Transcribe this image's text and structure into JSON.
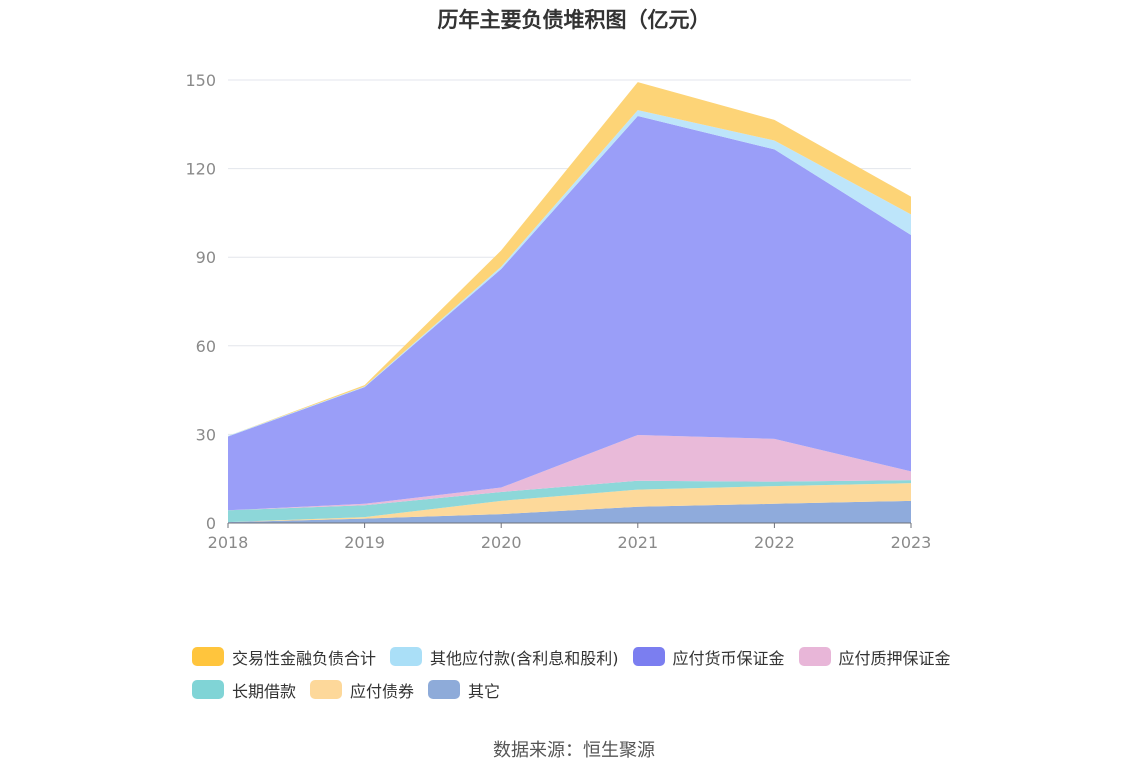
{
  "chart_data": {
    "type": "area",
    "stacked": true,
    "title": "历年主要负债堆积图（亿元）",
    "categories": [
      "2018",
      "2019",
      "2020",
      "2021",
      "2022",
      "2023"
    ],
    "ylim": [
      0,
      150
    ],
    "yticks": [
      0,
      30,
      60,
      90,
      120,
      150
    ],
    "grid": true,
    "legend_position": "bottom",
    "series": [
      {
        "name": "其它",
        "color": "#8fabdc",
        "values": [
          0.3,
          1.5,
          3.0,
          5.5,
          6.5,
          7.5
        ]
      },
      {
        "name": "应付债券",
        "color": "#fdd99a",
        "values": [
          0,
          0.5,
          4.5,
          5.8,
          6.0,
          6.0
        ]
      },
      {
        "name": "长期借款",
        "color": "#8dd7d9",
        "values": [
          4.0,
          4.0,
          3.0,
          3.0,
          1.5,
          1.0
        ]
      },
      {
        "name": "应付质押保证金",
        "color": "#e9bad9",
        "values": [
          0,
          0.5,
          1.5,
          15.5,
          14.5,
          3.0
        ]
      },
      {
        "name": "应付货币保证金",
        "color": "#9a9ef8",
        "values": [
          25.0,
          39.5,
          74.0,
          108.0,
          98.0,
          80.0
        ]
      },
      {
        "name": "其他应付款(含利息和股利)",
        "color": "#bde5fa",
        "values": [
          0.2,
          0.2,
          0.8,
          2.0,
          3.0,
          7.0
        ]
      },
      {
        "name": "交易性金融负债合计",
        "color": "#fdd477",
        "values": [
          0,
          0.5,
          5.5,
          9.5,
          7.0,
          6.0
        ]
      }
    ]
  },
  "legend": [
    {
      "label": "交易性金融负债合计",
      "color": "#ffc53d"
    },
    {
      "label": "其他应付款(含利息和股利)",
      "color": "#aadff7"
    },
    {
      "label": "应付货币保证金",
      "color": "#7b7ef0"
    },
    {
      "label": "应付质押保证金",
      "color": "#e8b6d8"
    },
    {
      "label": "长期借款",
      "color": "#80d4d6"
    },
    {
      "label": "应付债券",
      "color": "#fdd89a"
    },
    {
      "label": "其它",
      "color": "#8eabd9"
    }
  ],
  "source": "数据来源：恒生聚源"
}
